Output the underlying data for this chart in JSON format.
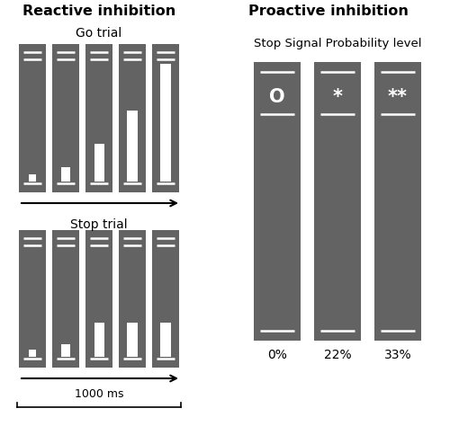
{
  "background_color": "#ffffff",
  "title_reactive": "Reactive inhibition",
  "title_proactive": "Proactive inhibition",
  "subtitle_go": "Go trial",
  "subtitle_stop": "Stop trial",
  "subtitle_proactive": "Stop Signal Probability level",
  "proactive_labels": [
    "0%",
    "22%",
    "33%"
  ],
  "proactive_symbols": [
    "O",
    "*",
    "**"
  ],
  "time_label": "1000 ms",
  "rect_gray": "#636363"
}
